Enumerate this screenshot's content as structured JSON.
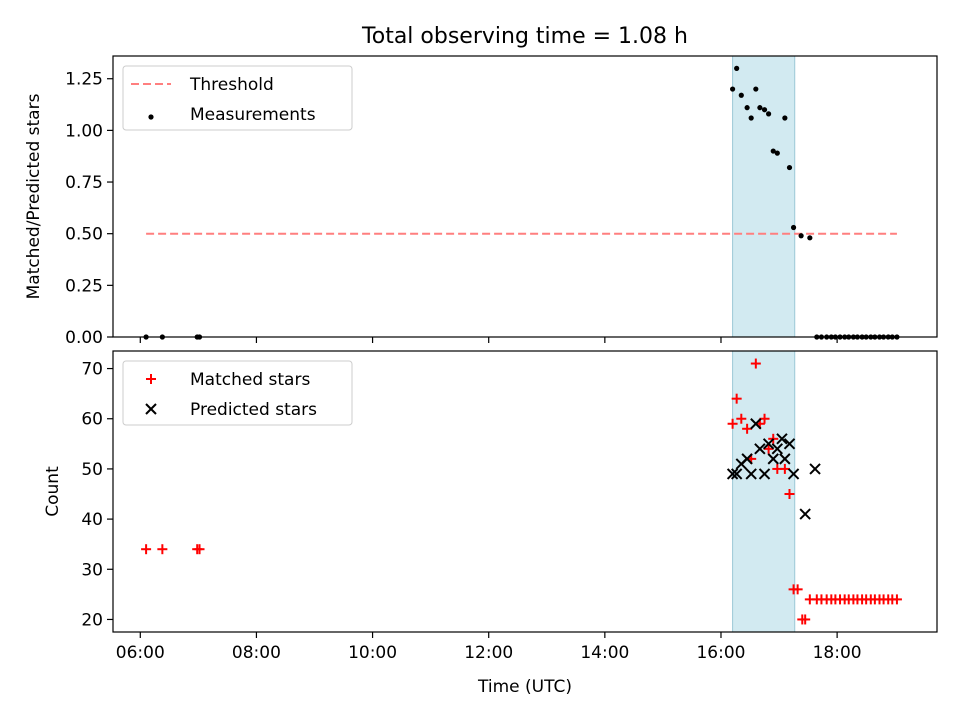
{
  "title": "Total observing time = 1.08 h",
  "colors": {
    "threshold": "#ff7f7f",
    "measurements": "#000000",
    "matched": "#ff0000",
    "predicted": "#000000",
    "span_fill": "#add8e6"
  },
  "chart_data": [
    {
      "type": "scatter",
      "ylabel": "Matched/Predicted stars",
      "ylim": [
        0,
        1.36
      ],
      "xlim": [
        5.53,
        19.72
      ],
      "yticks": [
        0.0,
        0.25,
        0.5,
        0.75,
        1.0,
        1.25
      ],
      "ytick_labels": [
        "0.00",
        "0.25",
        "0.50",
        "0.75",
        "1.00",
        "1.25"
      ],
      "grid": false,
      "legend_position": "upper left",
      "highlight_span": [
        16.2,
        17.27
      ],
      "threshold": {
        "name": "Threshold",
        "value": 0.5,
        "x_range": [
          6.1,
          19.03
        ]
      },
      "series": [
        {
          "name": "Measurements",
          "x": [
            6.1,
            6.38,
            6.98,
            7.02,
            16.2,
            16.27,
            16.35,
            16.45,
            16.52,
            16.6,
            16.67,
            16.75,
            16.82,
            16.9,
            16.97,
            17.1,
            17.18,
            17.25,
            17.38,
            17.53,
            17.65,
            17.73,
            17.82,
            17.9,
            17.97,
            18.05,
            18.13,
            18.2,
            18.28,
            18.35,
            18.43,
            18.5,
            18.58,
            18.65,
            18.73,
            18.8,
            18.88,
            18.95,
            19.03
          ],
          "y": [
            0.0,
            0.0,
            0.0,
            0.0,
            1.2,
            1.3,
            1.17,
            1.11,
            1.06,
            1.2,
            1.11,
            1.1,
            1.08,
            0.9,
            0.89,
            1.06,
            0.82,
            0.53,
            0.49,
            0.48,
            0.0,
            0.0,
            0.0,
            0.0,
            0.0,
            0.0,
            0.0,
            0.0,
            0.0,
            0.0,
            0.0,
            0.0,
            0.0,
            0.0,
            0.0,
            0.0,
            0.0,
            0.0,
            0.0
          ]
        }
      ]
    },
    {
      "type": "scatter",
      "xlabel": "Time (UTC)",
      "ylabel": "Count",
      "ylim": [
        17.5,
        73.5
      ],
      "xlim": [
        5.53,
        19.72
      ],
      "xticks": [
        6,
        8,
        10,
        12,
        14,
        16,
        18
      ],
      "xtick_labels": [
        "06:00",
        "08:00",
        "10:00",
        "12:00",
        "14:00",
        "16:00",
        "18:00"
      ],
      "yticks": [
        20,
        30,
        40,
        50,
        60,
        70
      ],
      "ytick_labels": [
        "20",
        "30",
        "40",
        "50",
        "60",
        "70"
      ],
      "grid": false,
      "legend_position": "upper left",
      "highlight_span": [
        16.2,
        17.27
      ],
      "series": [
        {
          "name": "Matched stars",
          "marker": "plus",
          "x": [
            6.1,
            6.38,
            6.98,
            7.02,
            16.2,
            16.27,
            16.35,
            16.45,
            16.52,
            16.6,
            16.67,
            16.75,
            16.82,
            16.9,
            16.97,
            17.1,
            17.18,
            17.25,
            17.32,
            17.4,
            17.45,
            17.53,
            17.65,
            17.73,
            17.82,
            17.9,
            17.97,
            18.05,
            18.13,
            18.2,
            18.28,
            18.35,
            18.43,
            18.5,
            18.58,
            18.65,
            18.73,
            18.8,
            18.88,
            18.95,
            19.03
          ],
          "y": [
            34,
            34,
            34,
            34,
            59,
            64,
            60,
            58,
            52,
            71,
            59,
            60,
            54,
            56,
            50,
            50,
            45,
            26,
            26,
            20,
            20,
            24,
            24,
            24,
            24,
            24,
            24,
            24,
            24,
            24,
            24,
            24,
            24,
            24,
            24,
            24,
            24,
            24,
            24,
            24,
            24
          ]
        },
        {
          "name": "Predicted stars",
          "marker": "x",
          "x": [
            16.2,
            16.27,
            16.35,
            16.45,
            16.52,
            16.6,
            16.67,
            16.75,
            16.82,
            16.9,
            16.97,
            17.05,
            17.1,
            17.18,
            17.25,
            17.45,
            17.62
          ],
          "y": [
            49,
            49,
            51,
            52,
            49,
            59,
            54,
            49,
            55,
            52,
            54,
            56,
            52,
            55,
            49,
            41,
            50
          ]
        }
      ]
    }
  ]
}
